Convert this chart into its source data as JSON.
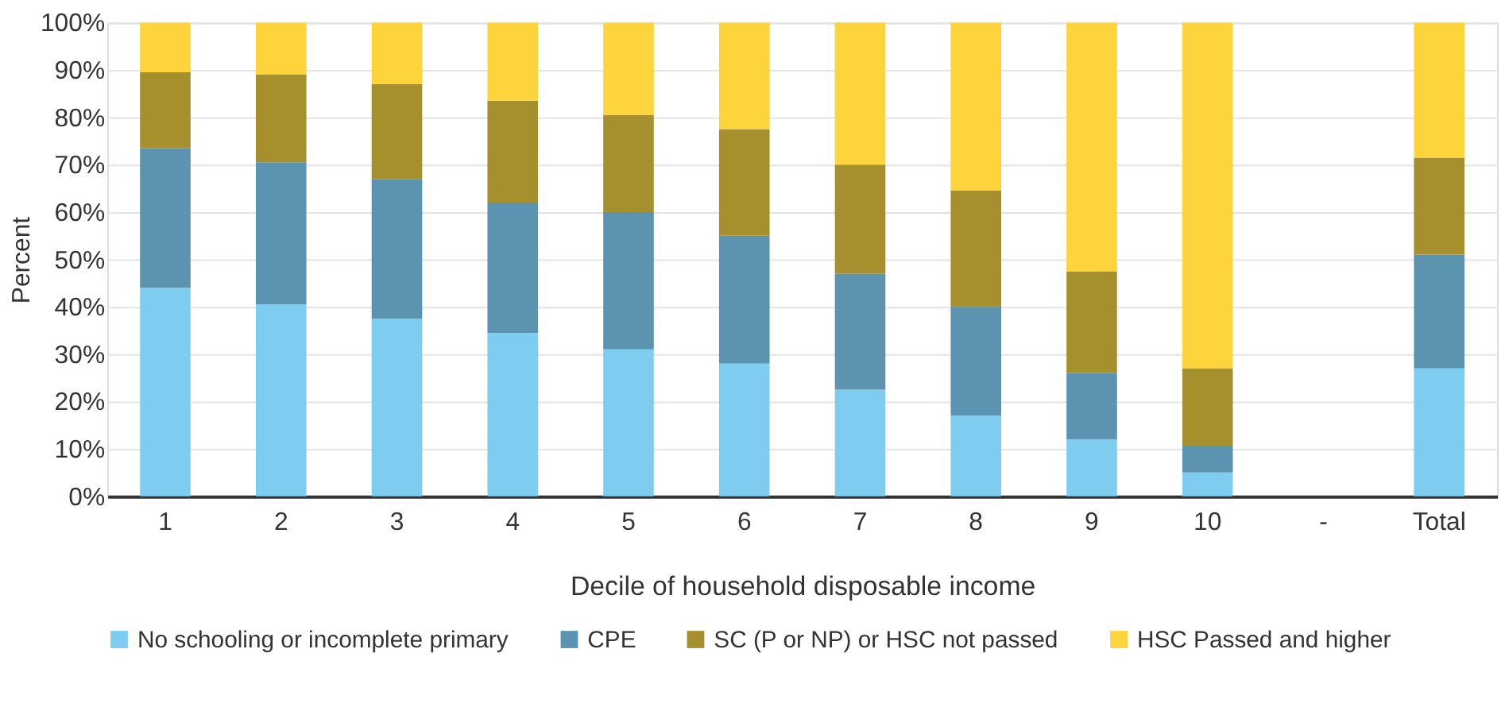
{
  "chart_data": {
    "type": "bar",
    "stacked": true,
    "xlabel": "Decile of household disposable income",
    "ylabel": "Percent",
    "categories": [
      "1",
      "2",
      "3",
      "4",
      "5",
      "6",
      "7",
      "8",
      "9",
      "10",
      "-",
      "Total"
    ],
    "series": [
      {
        "name": "No schooling or incomplete primary",
        "color": "#7ecdf0",
        "values": [
          44,
          40.5,
          37.5,
          34.5,
          31,
          28,
          22.5,
          17,
          12,
          5,
          null,
          27
        ]
      },
      {
        "name": "CPE",
        "color": "#5b93b0",
        "values": [
          29.5,
          30,
          29.5,
          27.5,
          29,
          27,
          24.5,
          23,
          14,
          5.5,
          null,
          24
        ]
      },
      {
        "name": "SC (P or NP) or HSC not passed",
        "color": "#a68f2d",
        "values": [
          16,
          18.5,
          20,
          21.5,
          20.5,
          22.5,
          23,
          24.5,
          21.5,
          16.5,
          null,
          20.5
        ]
      },
      {
        "name": "HSC Passed and higher",
        "color": "#fdd43b",
        "values": [
          10.5,
          11,
          13,
          16.5,
          19.5,
          22.5,
          30,
          35.5,
          52.5,
          73,
          null,
          28.5
        ]
      }
    ],
    "ylim": [
      0,
      100
    ],
    "yticks": [
      {
        "value": 0,
        "label": "0%"
      },
      {
        "value": 10,
        "label": "10%"
      },
      {
        "value": 20,
        "label": "20%"
      },
      {
        "value": 30,
        "label": "30%"
      },
      {
        "value": 40,
        "label": "40%"
      },
      {
        "value": 50,
        "label": "50%"
      },
      {
        "value": 60,
        "label": "60%"
      },
      {
        "value": 70,
        "label": "70%"
      },
      {
        "value": 80,
        "label": "80%"
      },
      {
        "value": 90,
        "label": "90%"
      },
      {
        "value": 100,
        "label": "100%"
      }
    ],
    "grid": "y",
    "legend": "bottom"
  }
}
